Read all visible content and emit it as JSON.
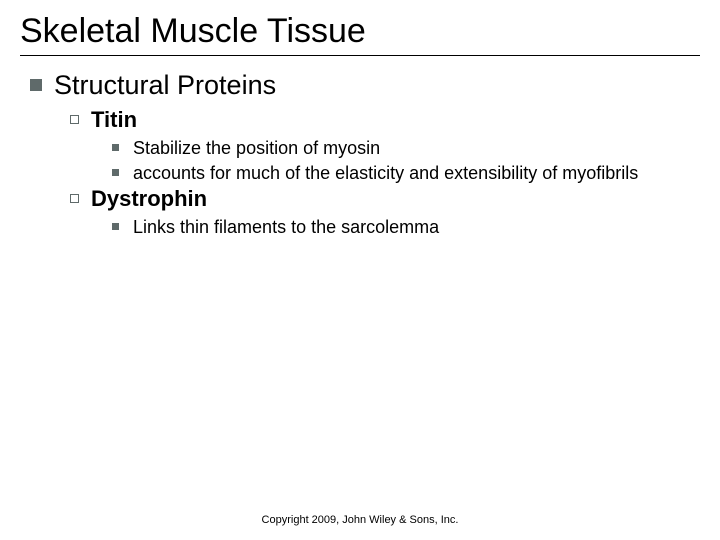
{
  "title": "Skeletal Muscle Tissue",
  "colors": {
    "bullet_fill": "#5f6a6a",
    "bullet_border": "#5f6a6a",
    "text": "#000000",
    "title_rule": "#000000",
    "background": "#ffffff"
  },
  "typography": {
    "title_fontsize_pt": 26,
    "lvl1_fontsize_pt": 20,
    "lvl2_fontsize_pt": 17,
    "lvl3_fontsize_pt": 14,
    "copyright_fontsize_pt": 8,
    "font_family": "Arial"
  },
  "outline": {
    "lvl1_text": "Structural Proteins",
    "lvl2_items": [
      {
        "label": "Titin",
        "points": [
          "Stabilize the position of myosin",
          "accounts for much of the elasticity and extensibility of myofibrils"
        ]
      },
      {
        "label": "Dystrophin",
        "points": [
          "Links thin filaments to the sarcolemma"
        ]
      }
    ]
  },
  "copyright": "Copyright 2009, John Wiley & Sons, Inc."
}
